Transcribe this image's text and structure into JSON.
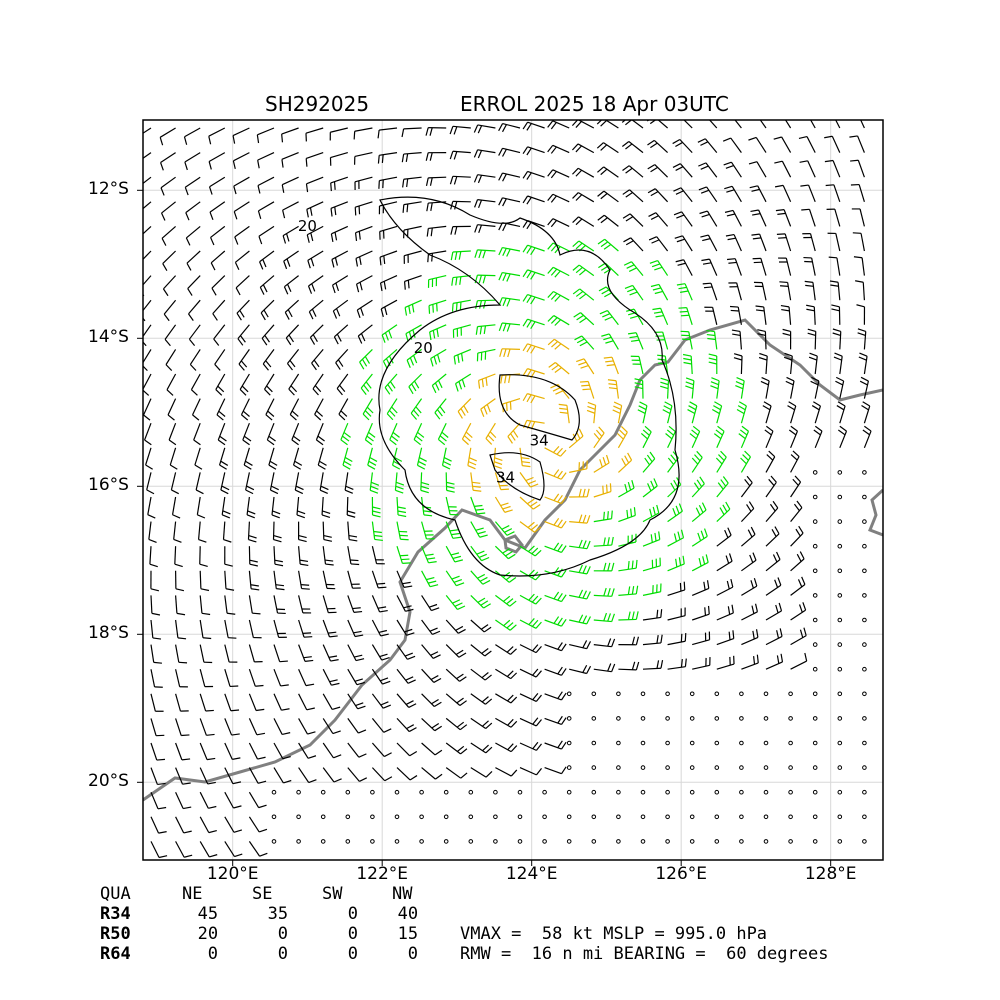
{
  "title": {
    "storm_id": "SH292025",
    "storm_info": "ERROL 2025 18 Apr 03UTC"
  },
  "map": {
    "lon_range": [
      118.8,
      128.7
    ],
    "lat_range": [
      -21.05,
      -11.05
    ],
    "lat_ticks": [
      {
        "value": -12,
        "label": "12°S"
      },
      {
        "value": -14,
        "label": "14°S"
      },
      {
        "value": -16,
        "label": "16°S"
      },
      {
        "value": -18,
        "label": "18°S"
      },
      {
        "value": -20,
        "label": "20°S"
      }
    ],
    "lon_ticks": [
      {
        "value": 120,
        "label": "120°E"
      },
      {
        "value": 122,
        "label": "122°E"
      },
      {
        "value": 124,
        "label": "124°E"
      },
      {
        "value": 126,
        "label": "126°E"
      },
      {
        "value": 128,
        "label": "128°E"
      }
    ],
    "grid": true,
    "storm_center": {
      "lon": 124.2,
      "lat": -15.3
    },
    "contour_labels": [
      {
        "text": "20",
        "lon": 121.0,
        "lat": -12.55
      },
      {
        "text": "20",
        "lon": 122.55,
        "lat": -14.2
      },
      {
        "text": "34",
        "lon": 124.1,
        "lat": -15.45
      },
      {
        "text": "34",
        "lon": 123.65,
        "lat": -15.95
      }
    ],
    "colors": {
      "coastline": "#808080",
      "barb_calm": "#000000",
      "barb_34kt": "#00dd00",
      "barb_50kt": "#e8b000",
      "contour": "#000000"
    }
  },
  "quadrants": {
    "header": [
      "QUA",
      "NE",
      "SE",
      "SW",
      "NW"
    ],
    "rows": [
      [
        "R34",
        "45",
        "35",
        "0",
        "40"
      ],
      [
        "R50",
        "20",
        "0",
        "0",
        "15"
      ],
      [
        "R64",
        "0",
        "0",
        "0",
        "0"
      ]
    ]
  },
  "stats": {
    "line1": "VMAX =  58 kt MSLP = 995.0 hPa",
    "line2": "RMW =  16 n mi BEARING =  60 degrees"
  }
}
